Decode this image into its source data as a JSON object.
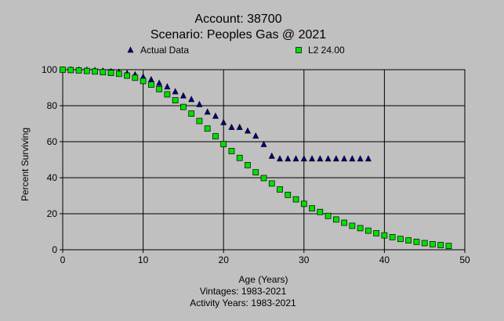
{
  "chart_data": {
    "type": "scatter",
    "title": "Account: 38700",
    "subtitle": "Scenario: Peoples Gas @ 2021",
    "xlabel": "Age (Years)",
    "ylabel": "Percent Surviving",
    "footnotes": [
      "Vintages: 1983-2021",
      "Activity Years: 1983-2021"
    ],
    "xlim": [
      0,
      50
    ],
    "ylim": [
      0,
      100
    ],
    "xticks": [
      "0",
      "10",
      "20",
      "30",
      "40",
      "50"
    ],
    "yticks": [
      "0",
      "20",
      "40",
      "60",
      "80",
      "100"
    ],
    "grid": true,
    "legend_position": "top",
    "series": [
      {
        "name": "Actual Data",
        "marker": "triangle",
        "color": "#000080",
        "x": [
          0,
          1,
          2,
          3,
          4,
          5,
          6,
          7,
          8,
          9,
          10,
          11,
          12,
          13,
          14,
          15,
          16,
          17,
          18,
          19,
          20,
          21,
          22,
          23,
          24,
          25,
          26,
          27,
          28,
          29,
          30,
          31,
          32,
          33,
          34,
          35,
          36,
          37,
          38
        ],
        "y": [
          100,
          100,
          99.9,
          99.8,
          99.6,
          99.3,
          99,
          98.6,
          98,
          97.2,
          96,
          94.5,
          92.5,
          90.5,
          87.8,
          85.5,
          83.5,
          80.7,
          76.5,
          74.2,
          70.7,
          68,
          68,
          66,
          63.2,
          58.5,
          52,
          50.5,
          50.5,
          50.5,
          50.5,
          50.5,
          50.5,
          50.5,
          50.5,
          50.5,
          50.5,
          50.5,
          50.5
        ]
      },
      {
        "name": "L2 24.00",
        "marker": "square",
        "color": "#00e000",
        "x": [
          0,
          1,
          2,
          3,
          4,
          5,
          6,
          7,
          8,
          9,
          10,
          11,
          12,
          13,
          14,
          15,
          16,
          17,
          18,
          19,
          20,
          21,
          22,
          23,
          24,
          25,
          26,
          27,
          28,
          29,
          30,
          31,
          32,
          33,
          34,
          35,
          36,
          37,
          38,
          39,
          40,
          41,
          42,
          43,
          44,
          45,
          46,
          47,
          48
        ],
        "y": [
          100,
          99.8,
          99.6,
          99.3,
          99,
          98.6,
          98.2,
          97.7,
          96.7,
          95.5,
          93.7,
          91.7,
          89.2,
          86.3,
          83,
          79.3,
          75.6,
          71.5,
          67.3,
          63,
          58.7,
          54.8,
          51,
          47,
          43,
          39.8,
          36.8,
          33.5,
          30.5,
          28,
          25.5,
          23,
          21,
          18.8,
          16.8,
          15,
          13.3,
          12,
          10.6,
          9.2,
          8,
          7,
          6,
          5.2,
          4.4,
          3.7,
          3.1,
          2.6,
          2.1
        ]
      }
    ]
  }
}
